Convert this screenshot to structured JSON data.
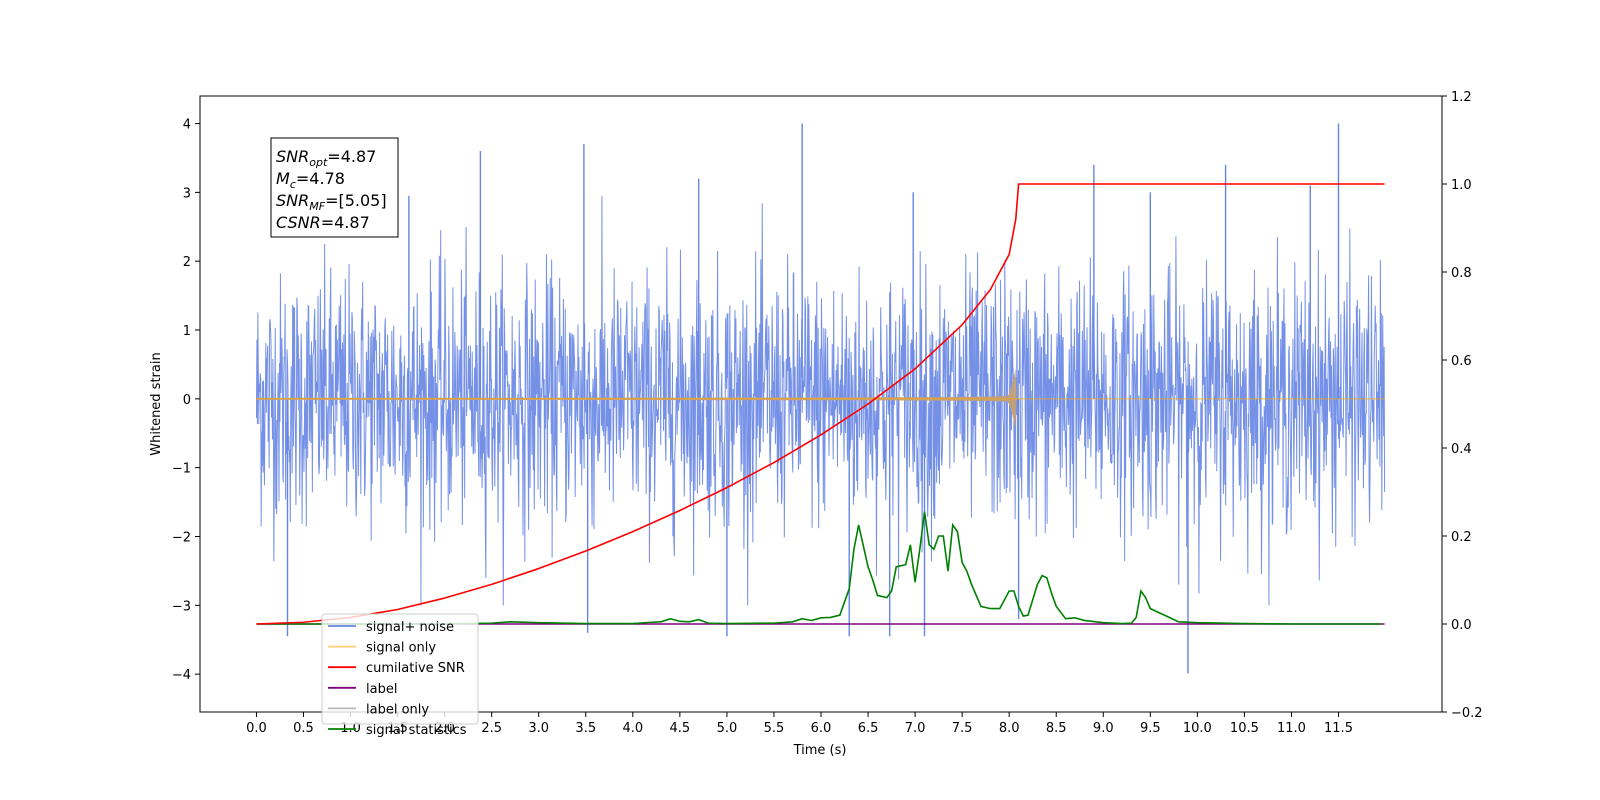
{
  "chart_data": {
    "type": "line",
    "title": "",
    "xlabel": "Time (s)",
    "ylabel": "Whitened strain",
    "xlim": [
      -0.6,
      12.6
    ],
    "ylim": [
      -4.55,
      4.4
    ],
    "ylim_right": [
      -0.2,
      1.2
    ],
    "x_ticks": [
      0.0,
      0.5,
      1.0,
      1.5,
      2.0,
      2.5,
      3.0,
      3.5,
      4.0,
      4.5,
      5.0,
      5.5,
      6.0,
      6.5,
      7.0,
      7.5,
      8.0,
      8.5,
      9.0,
      9.5,
      10.0,
      10.5,
      11.0,
      11.5
    ],
    "x_tick_labels": [
      "0.0",
      "0.5",
      "1.0",
      "1.5",
      "2.0",
      "2.5",
      "3.0",
      "3.5",
      "4.0",
      "4.5",
      "5.0",
      "5.5",
      "6.0",
      "6.5",
      "7.0",
      "7.5",
      "8.0",
      "8.5",
      "9.0",
      "9.5",
      "10.0",
      "10.5",
      "11.0",
      "11.5"
    ],
    "y_ticks": [
      -4,
      -3,
      -2,
      -1,
      0,
      1,
      2,
      3,
      4
    ],
    "y_tick_labels": [
      "−4",
      "−3",
      "−2",
      "−1",
      "0",
      "1",
      "2",
      "3",
      "4"
    ],
    "y_ticks_right": [
      -0.2,
      0.0,
      0.2,
      0.4,
      0.6,
      0.8,
      1.0,
      1.2
    ],
    "y_tick_labels_right": [
      "−0.2",
      "0.0",
      "0.2",
      "0.4",
      "0.6",
      "0.8",
      "1.0",
      "1.2"
    ],
    "grid": false,
    "legend_position": "lower-left",
    "series": [
      {
        "name": "signal+ noise",
        "color": "#6685e4",
        "axis": "left",
        "x_range": [
          0.0,
          11.99
        ],
        "typical_amplitude": 1.5,
        "spikes": [
          {
            "x": 0.33,
            "y": -3.45
          },
          {
            "x": 1.62,
            "y": 2.95
          },
          {
            "x": 2.38,
            "y": 3.6
          },
          {
            "x": 3.48,
            "y": 3.7
          },
          {
            "x": 3.52,
            "y": -3.4
          },
          {
            "x": 4.7,
            "y": 3.2
          },
          {
            "x": 5.0,
            "y": -3.45
          },
          {
            "x": 5.8,
            "y": 4.0
          },
          {
            "x": 6.3,
            "y": -3.45
          },
          {
            "x": 6.73,
            "y": -3.45
          },
          {
            "x": 6.98,
            "y": 3.0
          },
          {
            "x": 7.1,
            "y": -3.45
          },
          {
            "x": 8.1,
            "y": -3.2
          },
          {
            "x": 8.9,
            "y": 3.4
          },
          {
            "x": 9.5,
            "y": 3.0
          },
          {
            "x": 9.9,
            "y": -3.99
          },
          {
            "x": 10.3,
            "y": 3.4
          },
          {
            "x": 11.5,
            "y": 4.0
          },
          {
            "x": 11.2,
            "y": 3.1
          }
        ]
      },
      {
        "name": "signal only",
        "color": "#ffa500",
        "axis": "left",
        "x_range": [
          0.0,
          11.99
        ],
        "merger_time": 8.07,
        "peak_amplitude": 0.55
      },
      {
        "name": "cumilative SNR",
        "color": "#ff0000",
        "axis": "right",
        "x": [
          0.0,
          0.5,
          1.0,
          1.5,
          2.0,
          2.5,
          3.0,
          3.5,
          4.0,
          4.5,
          5.0,
          5.5,
          6.0,
          6.5,
          7.0,
          7.5,
          7.8,
          8.0,
          8.07,
          8.1,
          9.0,
          10.0,
          11.0,
          11.99
        ],
        "values": [
          0.0,
          0.004,
          0.015,
          0.033,
          0.059,
          0.09,
          0.126,
          0.166,
          0.21,
          0.258,
          0.31,
          0.367,
          0.43,
          0.5,
          0.58,
          0.68,
          0.76,
          0.84,
          0.92,
          1.0,
          1.0,
          1.0,
          1.0,
          1.0
        ]
      },
      {
        "name": "label",
        "color": "#800080",
        "axis": "right",
        "x": [
          0.0,
          11.99
        ],
        "values": [
          0.0,
          0.0
        ]
      },
      {
        "name": "label only",
        "color": "#bbbbbb",
        "axis": "right",
        "x": [],
        "values": []
      },
      {
        "name": "signal statistics",
        "color": "#008000",
        "axis": "right",
        "x": [
          0.0,
          1.0,
          2.0,
          2.5,
          2.7,
          3.0,
          3.5,
          4.0,
          4.2,
          4.3,
          4.4,
          4.5,
          4.6,
          4.7,
          4.8,
          5.0,
          5.5,
          5.7,
          5.8,
          5.85,
          5.9,
          6.0,
          6.1,
          6.2,
          6.3,
          6.35,
          6.4,
          6.5,
          6.55,
          6.6,
          6.7,
          6.75,
          6.8,
          6.9,
          6.95,
          7.0,
          7.05,
          7.1,
          7.15,
          7.2,
          7.25,
          7.3,
          7.35,
          7.4,
          7.45,
          7.5,
          7.55,
          7.6,
          7.7,
          7.8,
          7.9,
          8.0,
          8.05,
          8.1,
          8.15,
          8.2,
          8.3,
          8.35,
          8.4,
          8.45,
          8.5,
          8.6,
          8.7,
          8.8,
          9.0,
          9.2,
          9.3,
          9.35,
          9.4,
          9.45,
          9.5,
          9.6,
          9.7,
          9.8,
          10.0,
          10.5,
          11.0,
          11.5,
          11.95
        ],
        "values": [
          0.0,
          0.0,
          0.0,
          0.002,
          0.005,
          0.003,
          0.001,
          0.001,
          0.004,
          0.005,
          0.012,
          0.006,
          0.005,
          0.01,
          0.002,
          0.001,
          0.002,
          0.005,
          0.012,
          0.01,
          0.008,
          0.014,
          0.015,
          0.02,
          0.08,
          0.17,
          0.225,
          0.13,
          0.1,
          0.065,
          0.06,
          0.075,
          0.13,
          0.135,
          0.18,
          0.095,
          0.17,
          0.255,
          0.18,
          0.17,
          0.2,
          0.2,
          0.12,
          0.225,
          0.21,
          0.14,
          0.12,
          0.09,
          0.04,
          0.035,
          0.035,
          0.075,
          0.075,
          0.04,
          0.018,
          0.02,
          0.09,
          0.11,
          0.105,
          0.07,
          0.04,
          0.012,
          0.014,
          0.008,
          0.003,
          0.001,
          0.002,
          0.015,
          0.075,
          0.06,
          0.035,
          0.025,
          0.015,
          0.005,
          0.003,
          0.001,
          0.0,
          0.0,
          0.0
        ]
      }
    ],
    "annotation": [
      {
        "base": "SNR",
        "sub": "opt",
        "rest": "=4.87"
      },
      {
        "base": "M",
        "sub": "c",
        "rest": "=4.78"
      },
      {
        "base": "SNR",
        "sub": "MF",
        "rest": "=[5.05]"
      },
      {
        "base": "CSNR",
        "sub": "",
        "rest": "=4.87"
      }
    ]
  }
}
